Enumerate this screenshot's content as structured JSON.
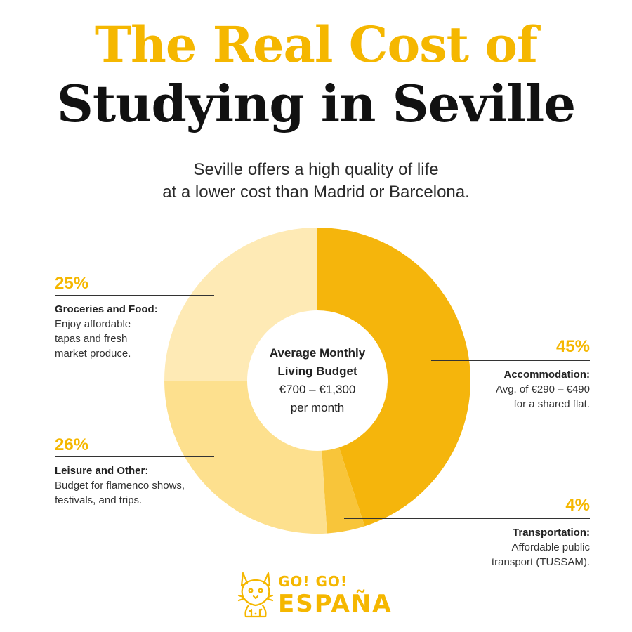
{
  "header": {
    "title_line1": "The Real Cost of",
    "title_line2": "Studying in Seville",
    "subtitle_line1": "Seville offers a high quality of life",
    "subtitle_line2": "at a lower cost than Madrid or Barcelona."
  },
  "colors": {
    "accent": "#f5b700",
    "accommodation": "#f5b50c",
    "transportation": "#f8c53a",
    "leisure": "#fde08e",
    "groceries": "#feeab5",
    "line": "#333333"
  },
  "center": {
    "title_line1": "Average Monthly",
    "title_line2": "Living Budget",
    "range_line1": "€700 – €1,300",
    "range_line2": "per month"
  },
  "callouts": {
    "accommodation": {
      "percent": "45%",
      "label": "Accommodation:",
      "desc1": "Avg. of €290 – €490",
      "desc2": "for a shared flat."
    },
    "transportation": {
      "percent": "4%",
      "label": "Transportation:",
      "desc1": "Affordable public",
      "desc2": "transport (TUSSAM)."
    },
    "leisure": {
      "percent": "26%",
      "label": "Leisure and Other:",
      "desc1": "Budget for flamenco shows,",
      "desc2": "festivals, and trips."
    },
    "groceries": {
      "percent": "25%",
      "label": "Groceries and Food:",
      "desc1": "Enjoy affordable",
      "desc2": "tapas and fresh",
      "desc3": "market produce."
    }
  },
  "chart_data": {
    "type": "pie",
    "variant": "donut",
    "title": "The Real Cost of Studying in Seville",
    "categories": [
      "Accommodation",
      "Transportation",
      "Leisure and Other",
      "Groceries and Food"
    ],
    "values": [
      45,
      4,
      26,
      25
    ],
    "unit": "%",
    "start_angle_deg": 0,
    "direction": "clockwise"
  },
  "logo": {
    "line1": "GO! GO!",
    "line2": "ESPAÑA",
    "icon": "lynx-mascot-icon"
  }
}
